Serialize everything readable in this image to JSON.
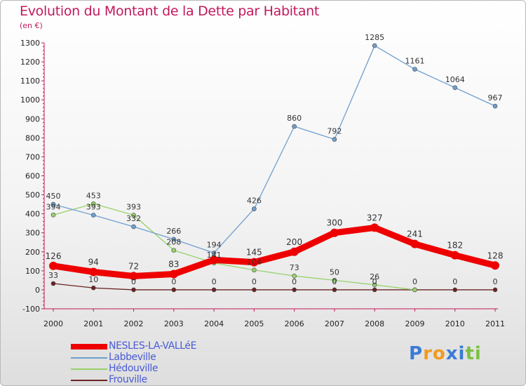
{
  "chart_data": {
    "type": "line",
    "title": "Evolution du Montant de la Dette par Habitant",
    "subtitle": "(en €)",
    "categories": [
      "2000",
      "2001",
      "2002",
      "2003",
      "2004",
      "2005",
      "2006",
      "2007",
      "2008",
      "2009",
      "2010",
      "2011"
    ],
    "y_ticks": [
      "-100",
      "0",
      "100",
      "200",
      "300",
      "400",
      "500",
      "600",
      "700",
      "800",
      "900",
      "1000",
      "1100",
      "1200",
      "1300"
    ],
    "ylim": [
      -100,
      1300
    ],
    "grid": false,
    "legend_position": "bottom-left",
    "series": [
      {
        "name": "NESLES-LA-VALLéE",
        "color": "#ee0000",
        "values": [
          126,
          94,
          72,
          83,
          157,
          145,
          200,
          300,
          327,
          241,
          182,
          128
        ],
        "labels": [
          "126",
          "94",
          "72",
          "83",
          "",
          "145",
          "200",
          "300",
          "327",
          "241",
          "182",
          "128"
        ]
      },
      {
        "name": "Labbeville",
        "color": "#6f9fcf",
        "values": [
          450,
          393,
          332,
          266,
          194,
          426,
          860,
          792,
          1285,
          1161,
          1064,
          967
        ],
        "labels": [
          "450",
          "393",
          "332",
          "266",
          "194",
          "426",
          "860",
          "792",
          "1285",
          "1161",
          "1064",
          "967"
        ]
      },
      {
        "name": "Hédouville",
        "color": "#96d26a",
        "values": [
          394,
          453,
          393,
          208,
          141,
          104,
          73,
          50,
          26,
          0,
          null,
          null
        ],
        "labels": [
          "394",
          "453",
          "393",
          "208",
          "141",
          "104",
          "73",
          "50",
          "26",
          "",
          "",
          ""
        ]
      },
      {
        "name": "Frouville",
        "color": "#6b2222",
        "values": [
          33,
          10,
          0,
          0,
          0,
          0,
          0,
          0,
          0,
          0,
          0,
          0
        ],
        "labels": [
          "33",
          "10",
          "0",
          "0",
          "0",
          "0",
          "0",
          "0",
          "0",
          "0",
          "0",
          "0"
        ]
      }
    ]
  },
  "brand": {
    "text": "Proxiti",
    "letters": [
      "P",
      "r",
      "o",
      "x",
      "i",
      "t",
      "i"
    ],
    "colors": [
      "#3a7bd5",
      "#f29a1f",
      "#f29a1f",
      "#3a7bd5",
      "#3a7bd5",
      "#7cc142",
      "#7cc142"
    ]
  }
}
